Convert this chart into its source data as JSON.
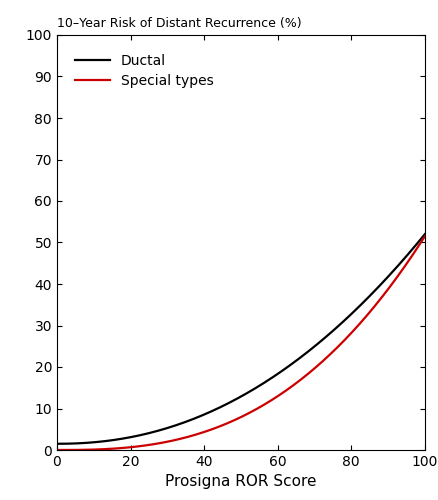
{
  "title": "10–Year Risk of Distant Recurrence (%)",
  "xlabel": "Prosigna ROR Score",
  "xlim": [
    0,
    100
  ],
  "ylim": [
    0,
    100
  ],
  "xticks": [
    0,
    20,
    40,
    60,
    80,
    100
  ],
  "yticks": [
    0,
    10,
    20,
    30,
    40,
    50,
    60,
    70,
    80,
    90,
    100
  ],
  "ductal_color": "#000000",
  "special_color": "#cc0000",
  "line_width": 1.6,
  "legend_labels": [
    "Ductal",
    "Special types"
  ],
  "background_color": "#ffffff",
  "ductal_power": 2.15,
  "ductal_start": 1.5,
  "ductal_end": 52.0,
  "special_power": 2.7,
  "special_start": 0.0,
  "special_end": 51.5,
  "title_fontsize": 9,
  "tick_fontsize": 10,
  "xlabel_fontsize": 11,
  "legend_fontsize": 10
}
